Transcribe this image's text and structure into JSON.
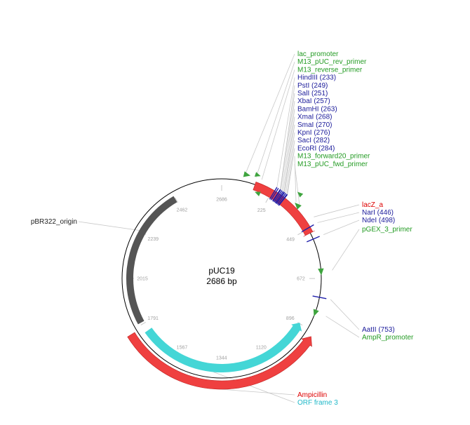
{
  "plasmid": {
    "name": "pUC19",
    "length_label": "2686 bp",
    "length_bp": 2686
  },
  "ticks": [
    {
      "label": "2686",
      "bp": 0
    },
    {
      "label": "225",
      "bp": 225
    },
    {
      "label": "449",
      "bp": 449
    },
    {
      "label": "672",
      "bp": 672
    },
    {
      "label": "896",
      "bp": 896
    },
    {
      "label": "1120",
      "bp": 1120
    },
    {
      "label": "1344",
      "bp": 1344
    },
    {
      "label": "1567",
      "bp": 1567
    },
    {
      "label": "1791",
      "bp": 1791
    },
    {
      "label": "2015",
      "bp": 2015
    },
    {
      "label": "2239",
      "bp": 2239
    },
    {
      "label": "2462",
      "bp": 2462
    }
  ],
  "colors": {
    "backbone": "#000000",
    "origin": "#555555",
    "promoter": "#3ea43e",
    "primer": "#3ea43e",
    "enzyme": "#1e1eaa",
    "gene": "#ef4040",
    "orf": "#44d6d6",
    "leader": "#c8c8c8",
    "label_red": "#dd0000",
    "label_blue": "#1a1a9a",
    "label_green": "#239b23",
    "label_dark": "#222222",
    "label_cyan": "#20b8c8"
  },
  "features": [
    {
      "name": "lacZ_a",
      "type": "gene",
      "start_bp": 146,
      "end_bp": 469
    },
    {
      "name": "pBR322_origin",
      "type": "origin",
      "start_bp": 1800,
      "end_bp": 2460
    },
    {
      "name": "Ampicillin",
      "type": "gene",
      "start_bp": 918,
      "end_bp": 1777
    },
    {
      "name": "ORF frame 3",
      "type": "orf",
      "start_bp": 892,
      "end_bp": 1752
    }
  ],
  "labels": {
    "top_stack": [
      {
        "text": "lac_promoter",
        "color": "label_green",
        "bp": 95
      },
      {
        "text": "M13_pUC_rev_primer",
        "color": "label_green",
        "bp": 140
      },
      {
        "text": "M13_reverse_primer",
        "color": "label_green",
        "bp": 165
      },
      {
        "text": "HindIII (233)",
        "color": "label_blue",
        "bp": 233
      },
      {
        "text": "PstI (249)",
        "color": "label_blue",
        "bp": 249
      },
      {
        "text": "SalI (251)",
        "color": "label_blue",
        "bp": 251
      },
      {
        "text": "XbaI (257)",
        "color": "label_blue",
        "bp": 257
      },
      {
        "text": "BamHI (263)",
        "color": "label_blue",
        "bp": 263
      },
      {
        "text": "XmaI (268)",
        "color": "label_blue",
        "bp": 268
      },
      {
        "text": "SmaI (270)",
        "color": "label_blue",
        "bp": 270
      },
      {
        "text": "KpnI (276)",
        "color": "label_blue",
        "bp": 276
      },
      {
        "text": "SacI (282)",
        "color": "label_blue",
        "bp": 282
      },
      {
        "text": "EcoRI (284)",
        "color": "label_blue",
        "bp": 284
      },
      {
        "text": "M13_forward20_primer",
        "color": "label_green",
        "bp": 330
      },
      {
        "text": "M13_pUC_fwd_primer",
        "color": "label_green",
        "bp": 350
      }
    ],
    "right_mid": [
      {
        "text": "lacZ_a",
        "color": "label_red",
        "bp": 420
      },
      {
        "text": "NarI (446)",
        "color": "label_blue",
        "bp": 446
      },
      {
        "text": "NdeI (498)",
        "color": "label_blue",
        "bp": 498
      },
      {
        "text": "pGEX_3_primer",
        "color": "label_green",
        "bp": 640
      }
    ],
    "right_low": [
      {
        "text": "AatII (753)",
        "color": "label_blue",
        "bp": 753
      },
      {
        "text": "AmpR_promoter",
        "color": "label_green",
        "bp": 820
      }
    ],
    "bottom": [
      {
        "text": "Ampicillin",
        "color": "label_red",
        "bp": 1400
      },
      {
        "text": "ORF frame 3",
        "color": "label_cyan",
        "bp": 1380
      }
    ],
    "left": [
      {
        "text": "pBR322_origin",
        "color": "label_dark",
        "bp": 2240
      }
    ]
  }
}
